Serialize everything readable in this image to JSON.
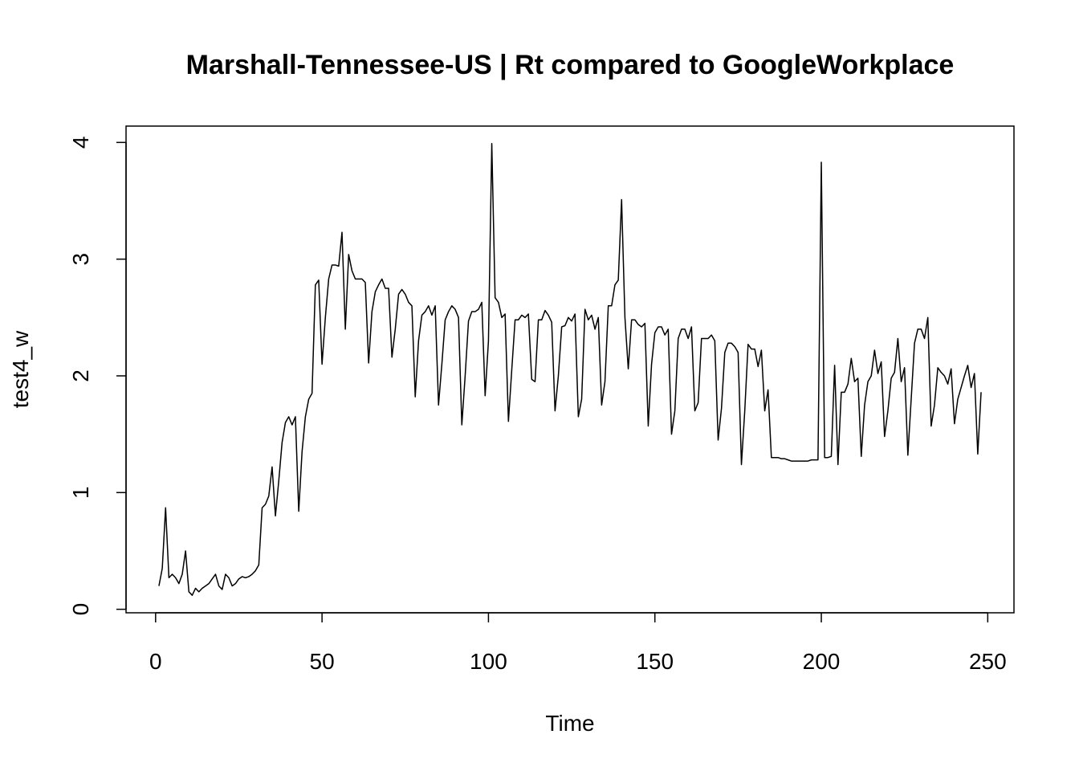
{
  "chart_data": {
    "type": "line",
    "title": "Marshall-Tennessee-US | Rt compared to GoogleWorkplace",
    "xlabel": "Time",
    "ylabel": "test4_w",
    "x": [
      1,
      2,
      3,
      4,
      5,
      6,
      7,
      8,
      9,
      10,
      11,
      12,
      13,
      14,
      15,
      16,
      17,
      18,
      19,
      20,
      21,
      22,
      23,
      24,
      25,
      26,
      27,
      28,
      29,
      30,
      31,
      32,
      33,
      34,
      35,
      36,
      37,
      38,
      39,
      40,
      41,
      42,
      43,
      44,
      45,
      46,
      47,
      48,
      49,
      50,
      51,
      52,
      53,
      54,
      55,
      56,
      57,
      58,
      59,
      60,
      61,
      62,
      63,
      64,
      65,
      66,
      67,
      68,
      69,
      70,
      71,
      72,
      73,
      74,
      75,
      76,
      77,
      78,
      79,
      80,
      81,
      82,
      83,
      84,
      85,
      86,
      87,
      88,
      89,
      90,
      91,
      92,
      93,
      94,
      95,
      96,
      97,
      98,
      99,
      100,
      101,
      102,
      103,
      104,
      105,
      106,
      107,
      108,
      109,
      110,
      111,
      112,
      113,
      114,
      115,
      116,
      117,
      118,
      119,
      120,
      121,
      122,
      123,
      124,
      125,
      126,
      127,
      128,
      129,
      130,
      131,
      132,
      133,
      134,
      135,
      136,
      137,
      138,
      139,
      140,
      141,
      142,
      143,
      144,
      145,
      146,
      147,
      148,
      149,
      150,
      151,
      152,
      153,
      154,
      155,
      156,
      157,
      158,
      159,
      160,
      161,
      162,
      163,
      164,
      165,
      166,
      167,
      168,
      169,
      170,
      171,
      172,
      173,
      174,
      175,
      176,
      177,
      178,
      179,
      180,
      181,
      182,
      183,
      184,
      185,
      186,
      187,
      188,
      189,
      190,
      191,
      192,
      193,
      194,
      195,
      196,
      197,
      198,
      199,
      200,
      201,
      202,
      203,
      204,
      205,
      206,
      207,
      208,
      209,
      210,
      211,
      212,
      213,
      214,
      215,
      216,
      217,
      218,
      219,
      220,
      221,
      222,
      223,
      224,
      225,
      226,
      227,
      228,
      229,
      230,
      231,
      232,
      233,
      234,
      235,
      236,
      237,
      238,
      239,
      240,
      241,
      242,
      243,
      244,
      245,
      246,
      247,
      248
    ],
    "series": [
      {
        "color": "#000000",
        "values": [
          0.2,
          0.35,
          0.87,
          0.27,
          0.3,
          0.27,
          0.22,
          0.3,
          0.5,
          0.15,
          0.12,
          0.18,
          0.15,
          0.18,
          0.2,
          0.22,
          0.26,
          0.3,
          0.2,
          0.17,
          0.3,
          0.27,
          0.2,
          0.22,
          0.26,
          0.28,
          0.27,
          0.28,
          0.3,
          0.33,
          0.38,
          0.87,
          0.9,
          0.97,
          1.22,
          0.8,
          1.1,
          1.43,
          1.6,
          1.65,
          1.58,
          1.65,
          0.84,
          1.35,
          1.65,
          1.8,
          1.85,
          2.78,
          2.82,
          2.1,
          2.5,
          2.83,
          2.95,
          2.95,
          2.94,
          3.23,
          2.4,
          3.04,
          2.9,
          2.83,
          2.83,
          2.83,
          2.8,
          2.11,
          2.55,
          2.72,
          2.78,
          2.83,
          2.75,
          2.75,
          2.16,
          2.4,
          2.7,
          2.74,
          2.7,
          2.63,
          2.6,
          1.82,
          2.3,
          2.52,
          2.55,
          2.6,
          2.52,
          2.6,
          1.75,
          2.1,
          2.48,
          2.55,
          2.6,
          2.57,
          2.5,
          1.58,
          2.0,
          2.47,
          2.55,
          2.55,
          2.57,
          2.63,
          1.83,
          2.3,
          3.99,
          2.67,
          2.63,
          2.5,
          2.53,
          1.61,
          2.05,
          2.48,
          2.48,
          2.52,
          2.5,
          2.53,
          1.97,
          1.95,
          2.48,
          2.48,
          2.56,
          2.52,
          2.46,
          1.7,
          2.0,
          2.42,
          2.43,
          2.5,
          2.47,
          2.53,
          1.65,
          1.8,
          2.57,
          2.48,
          2.52,
          2.4,
          2.5,
          1.75,
          1.95,
          2.6,
          2.6,
          2.78,
          2.82,
          3.51,
          2.5,
          2.06,
          2.48,
          2.48,
          2.44,
          2.42,
          2.45,
          1.57,
          2.1,
          2.37,
          2.42,
          2.42,
          2.35,
          2.4,
          1.5,
          1.7,
          2.32,
          2.4,
          2.4,
          2.32,
          2.42,
          1.7,
          1.77,
          2.32,
          2.32,
          2.32,
          2.35,
          2.3,
          1.45,
          1.72,
          2.2,
          2.28,
          2.28,
          2.25,
          2.2,
          1.24,
          1.7,
          2.27,
          2.23,
          2.23,
          2.08,
          2.22,
          1.7,
          1.88,
          1.3,
          1.3,
          1.3,
          1.29,
          1.29,
          1.28,
          1.27,
          1.27,
          1.27,
          1.27,
          1.27,
          1.27,
          1.28,
          1.28,
          1.28,
          3.83,
          1.3,
          1.3,
          1.31,
          2.09,
          1.24,
          1.86,
          1.86,
          1.93,
          2.15,
          1.95,
          1.98,
          1.31,
          1.75,
          1.95,
          2.0,
          2.22,
          2.02,
          2.12,
          1.48,
          1.7,
          1.98,
          2.03,
          2.32,
          1.95,
          2.07,
          1.32,
          1.8,
          2.28,
          2.4,
          2.4,
          2.32,
          2.5,
          1.57,
          1.75,
          2.07,
          2.03,
          2.0,
          1.93,
          2.06,
          1.59,
          1.8,
          1.9,
          2.0,
          2.09,
          1.9,
          2.02,
          1.33,
          1.86
        ]
      }
    ],
    "xlim": [
      -8.88,
      257.88
    ],
    "ylim": [
      -0.03,
      4.14
    ],
    "xticks": [
      0,
      50,
      100,
      150,
      200,
      250
    ],
    "yticks": [
      0,
      1,
      2,
      3,
      4
    ]
  }
}
